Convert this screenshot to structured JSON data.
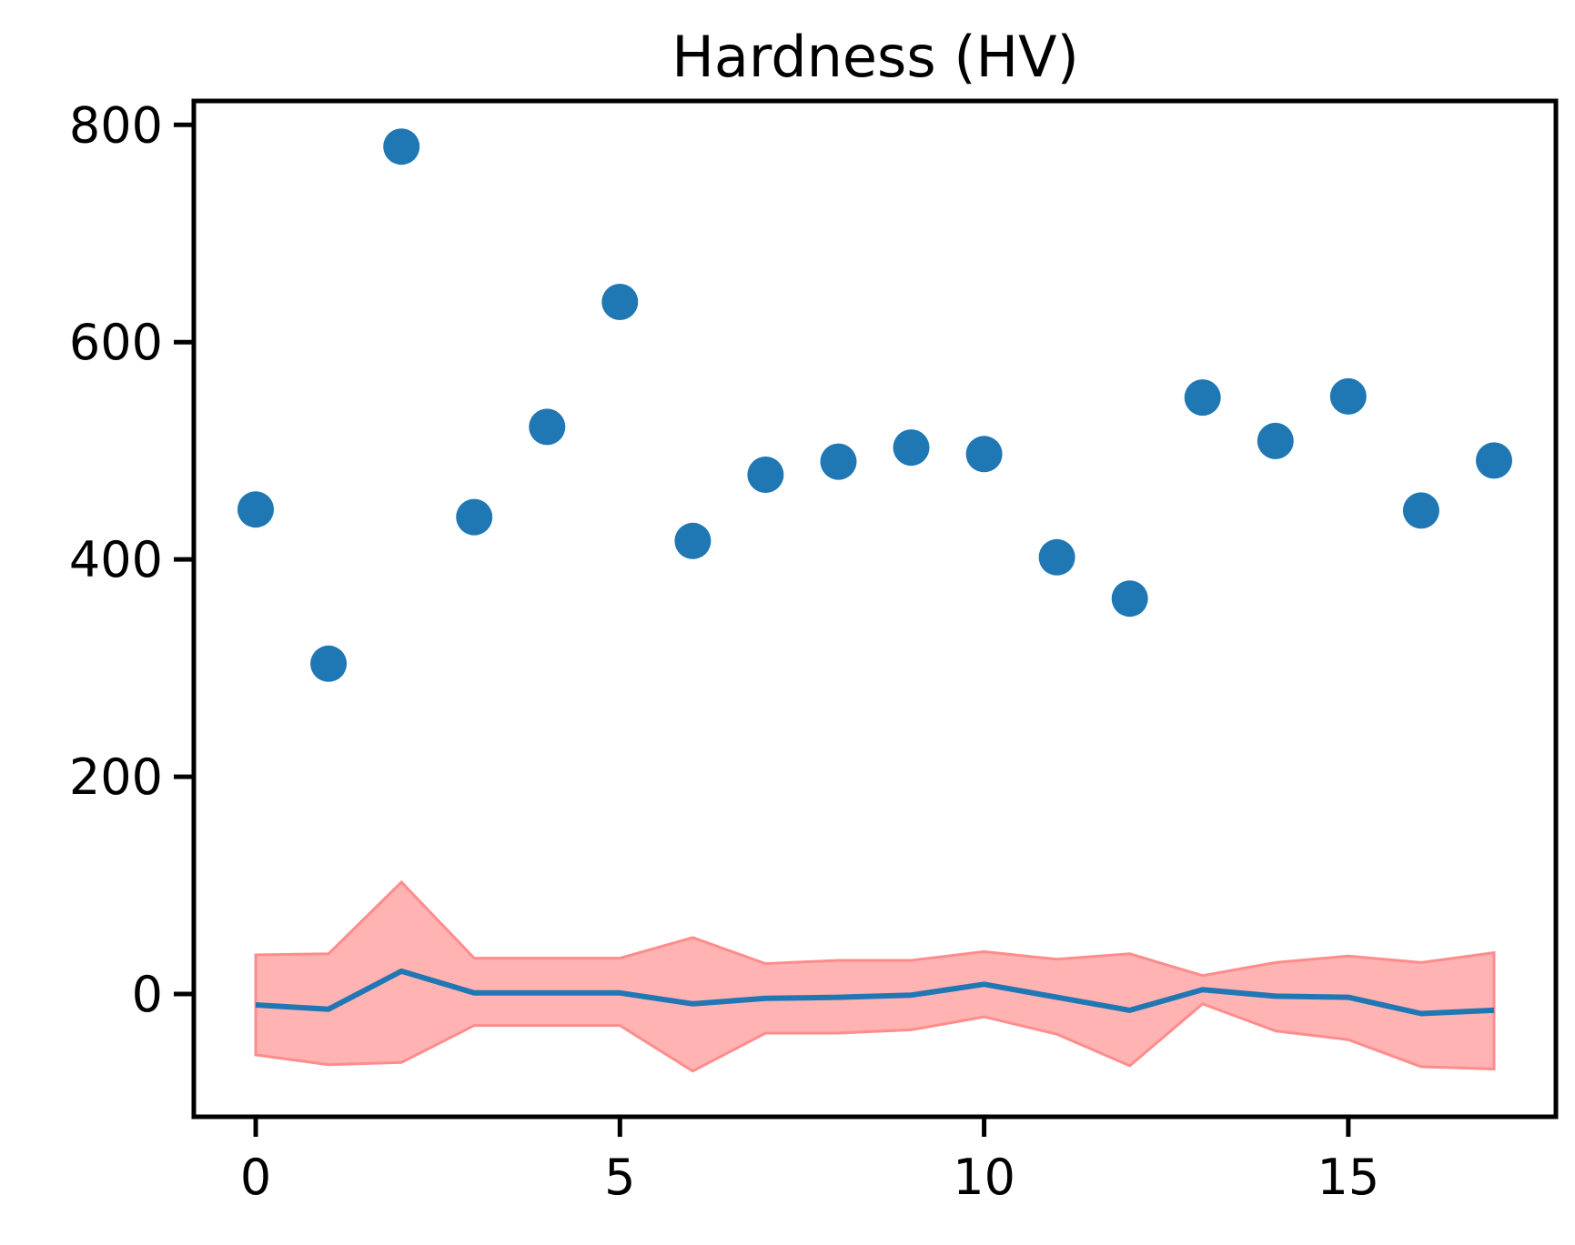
{
  "chart_data": {
    "type": "scatter",
    "title": "Hardness (HV)",
    "xlabel": "",
    "ylabel": "",
    "xlim": [
      -0.85,
      17.85
    ],
    "ylim": [
      -113,
      822
    ],
    "xticks": [
      0,
      5,
      10,
      15
    ],
    "yticks": [
      0,
      200,
      400,
      600,
      800
    ],
    "grid": false,
    "points": {
      "x": [
        0,
        1,
        2,
        3,
        4,
        5,
        6,
        7,
        8,
        9,
        10,
        11,
        12,
        13,
        14,
        15,
        16,
        17
      ],
      "y": [
        446,
        304,
        780,
        439,
        522,
        637,
        417,
        478,
        490,
        503,
        497,
        402,
        364,
        549,
        509,
        550,
        445,
        491
      ]
    },
    "line": {
      "x": [
        0,
        1,
        2,
        3,
        4,
        5,
        6,
        7,
        8,
        9,
        10,
        11,
        12,
        13,
        14,
        15,
        16,
        17
      ],
      "y": [
        -10,
        -14,
        21,
        1,
        1,
        1,
        -9,
        -4,
        -3,
        -1,
        9,
        -3,
        -15,
        4,
        -2,
        -3,
        -18,
        -15
      ]
    },
    "band": {
      "lower": [
        -56,
        -65,
        -63,
        -29,
        -29,
        -29,
        -71,
        -36,
        -36,
        -33,
        -21,
        -37,
        -66,
        -9,
        -34,
        -42,
        -67,
        -69
      ],
      "upper": [
        36,
        37,
        103,
        33,
        33,
        33,
        52,
        28,
        31,
        31,
        39,
        32,
        37,
        17,
        29,
        35,
        29,
        38
      ]
    },
    "colors": {
      "points": "#1f77b4",
      "line": "#1f77b4",
      "band_fill": "#ffb3b3",
      "band_edge": "#ff8c8c"
    }
  }
}
